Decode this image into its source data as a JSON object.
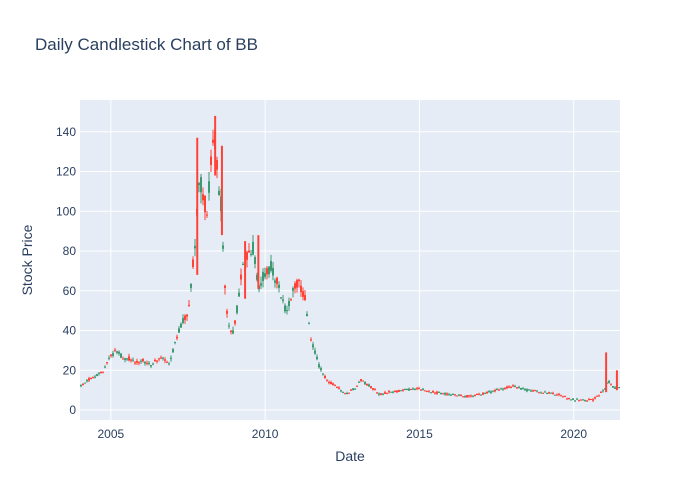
{
  "chart_data": {
    "type": "candlestick",
    "title": "Daily Candlestick Chart of BB",
    "xlabel": "Date",
    "ylabel": "Stock Price",
    "x_ticks": [
      "2005",
      "2010",
      "2015",
      "2020"
    ],
    "y_ticks": [
      0,
      20,
      40,
      60,
      80,
      100,
      120,
      140
    ],
    "xlim": [
      2004.0,
      2021.5
    ],
    "ylim": [
      -5,
      156
    ],
    "grid": true,
    "legend": "none",
    "colors": {
      "increasing": "#3d9970",
      "decreasing": "#ff4136",
      "plot_bg": "#e5ecf6",
      "grid": "#ffffff",
      "text": "#2a3f5f"
    },
    "price_path": [
      [
        2004.0,
        12
      ],
      [
        2004.25,
        15
      ],
      [
        2004.5,
        17
      ],
      [
        2004.75,
        20
      ],
      [
        2005.0,
        28
      ],
      [
        2005.25,
        30
      ],
      [
        2005.4,
        25
      ],
      [
        2005.6,
        26
      ],
      [
        2005.8,
        24
      ],
      [
        2006.0,
        25
      ],
      [
        2006.3,
        23
      ],
      [
        2006.6,
        27
      ],
      [
        2006.9,
        24
      ],
      [
        2007.1,
        35
      ],
      [
        2007.3,
        44
      ],
      [
        2007.5,
        50
      ],
      [
        2007.75,
        85
      ],
      [
        2007.85,
        115
      ],
      [
        2008.0,
        110
      ],
      [
        2008.1,
        98
      ],
      [
        2008.2,
        115
      ],
      [
        2008.35,
        140
      ],
      [
        2008.5,
        110
      ],
      [
        2008.6,
        100
      ],
      [
        2008.65,
        72
      ],
      [
        2008.8,
        42
      ],
      [
        2008.95,
        38
      ],
      [
        2009.1,
        52
      ],
      [
        2009.3,
        75
      ],
      [
        2009.6,
        82
      ],
      [
        2009.8,
        60
      ],
      [
        2010.0,
        70
      ],
      [
        2010.2,
        72
      ],
      [
        2010.4,
        63
      ],
      [
        2010.55,
        58
      ],
      [
        2010.7,
        48
      ],
      [
        2010.9,
        62
      ],
      [
        2011.1,
        65
      ],
      [
        2011.3,
        55
      ],
      [
        2011.5,
        35
      ],
      [
        2011.75,
        22
      ],
      [
        2012.0,
        15
      ],
      [
        2012.3,
        12
      ],
      [
        2012.6,
        8
      ],
      [
        2012.9,
        11
      ],
      [
        2013.1,
        15
      ],
      [
        2013.4,
        12
      ],
      [
        2013.7,
        8
      ],
      [
        2014.0,
        9
      ],
      [
        2014.5,
        10
      ],
      [
        2015.0,
        11
      ],
      [
        2015.5,
        9
      ],
      [
        2016.0,
        8
      ],
      [
        2016.5,
        7
      ],
      [
        2017.0,
        8
      ],
      [
        2017.5,
        10
      ],
      [
        2018.0,
        12
      ],
      [
        2018.5,
        10
      ],
      [
        2019.0,
        9
      ],
      [
        2019.5,
        8
      ],
      [
        2019.8,
        6
      ],
      [
        2020.2,
        5
      ],
      [
        2020.6,
        5
      ],
      [
        2021.0,
        10
      ],
      [
        2021.1,
        15
      ],
      [
        2021.3,
        11
      ],
      [
        2021.5,
        12
      ]
    ],
    "spikes": [
      [
        2007.8,
        68,
        137
      ],
      [
        2008.38,
        118,
        148
      ],
      [
        2008.6,
        88,
        133
      ],
      [
        2009.35,
        56,
        85
      ],
      [
        2009.78,
        61,
        88
      ],
      [
        2021.05,
        9,
        29
      ],
      [
        2021.4,
        10,
        20
      ]
    ]
  }
}
